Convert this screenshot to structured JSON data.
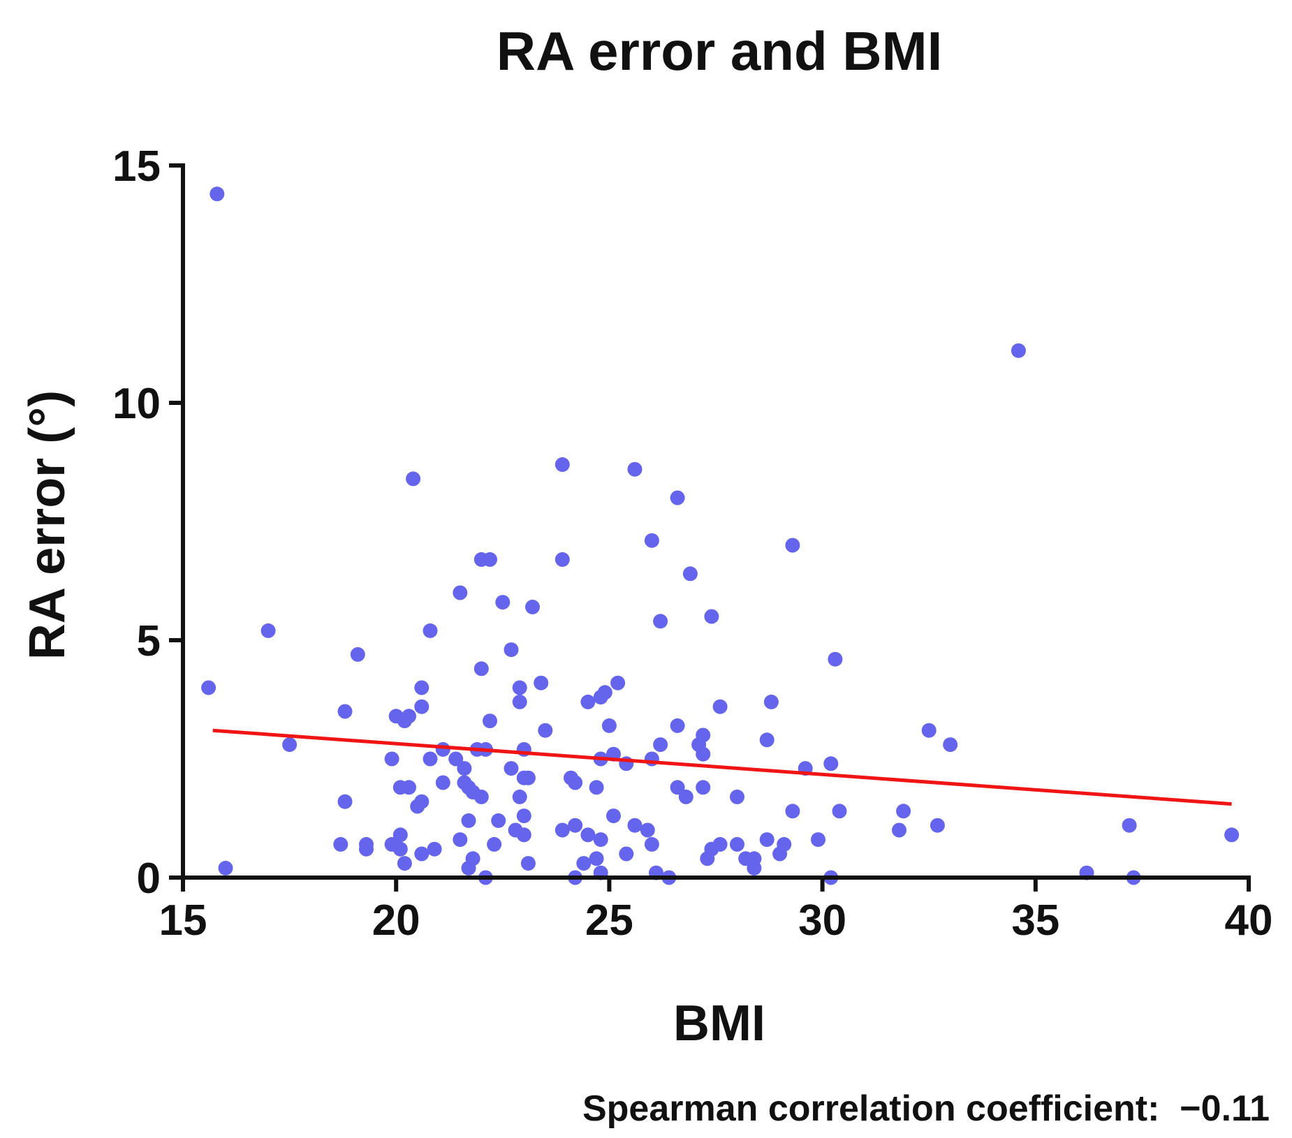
{
  "chart_data": {
    "type": "scatter",
    "title": "RA error and BMI",
    "xlabel": "BMI",
    "ylabel": "RA error (°)",
    "xlim": [
      15,
      40
    ],
    "ylim": [
      0,
      15
    ],
    "xticks": [
      15,
      20,
      25,
      30,
      35,
      40
    ],
    "yticks": [
      0,
      5,
      10,
      15
    ],
    "grid": false,
    "legend": "none",
    "annotation": "Spearman correlation coefficient:  −0.11",
    "point_color": "#6464EC",
    "trend_color": "#F01414",
    "axis_color": "#111111",
    "trend_line": {
      "x": [
        15.7,
        39.6
      ],
      "y": [
        3.1,
        1.55
      ]
    },
    "points": [
      [
        15.8,
        14.4
      ],
      [
        15.6,
        4.0
      ],
      [
        16.0,
        0.2
      ],
      [
        17.0,
        5.2
      ],
      [
        17.5,
        2.8
      ],
      [
        18.8,
        3.5
      ],
      [
        18.8,
        1.6
      ],
      [
        18.7,
        0.7
      ],
      [
        19.1,
        4.7
      ],
      [
        19.3,
        0.7
      ],
      [
        19.3,
        0.6
      ],
      [
        19.9,
        0.7
      ],
      [
        19.9,
        2.5
      ],
      [
        20.0,
        3.4
      ],
      [
        20.1,
        0.6
      ],
      [
        20.2,
        0.3
      ],
      [
        20.1,
        0.9
      ],
      [
        20.1,
        1.9
      ],
      [
        20.2,
        3.3
      ],
      [
        20.3,
        3.4
      ],
      [
        20.3,
        1.9
      ],
      [
        20.5,
        1.5
      ],
      [
        20.4,
        8.4
      ],
      [
        20.6,
        3.6
      ],
      [
        20.6,
        1.6
      ],
      [
        20.6,
        0.5
      ],
      [
        20.6,
        4.0
      ],
      [
        20.8,
        5.2
      ],
      [
        20.8,
        2.5
      ],
      [
        20.9,
        0.6
      ],
      [
        21.1,
        2.7
      ],
      [
        21.1,
        2.0
      ],
      [
        21.4,
        2.5
      ],
      [
        21.5,
        0.8
      ],
      [
        21.5,
        6.0
      ],
      [
        21.6,
        2.0
      ],
      [
        21.6,
        2.3
      ],
      [
        21.7,
        1.9
      ],
      [
        21.7,
        1.2
      ],
      [
        21.7,
        0.2
      ],
      [
        21.8,
        0.4
      ],
      [
        21.8,
        1.8
      ],
      [
        21.9,
        2.7
      ],
      [
        22.0,
        1.7
      ],
      [
        22.0,
        4.4
      ],
      [
        22.0,
        6.7
      ],
      [
        22.1,
        0.0
      ],
      [
        22.1,
        2.7
      ],
      [
        22.2,
        6.7
      ],
      [
        22.2,
        3.3
      ],
      [
        22.3,
        0.7
      ],
      [
        22.4,
        1.2
      ],
      [
        22.5,
        5.8
      ],
      [
        22.7,
        4.8
      ],
      [
        22.7,
        2.3
      ],
      [
        22.8,
        1.0
      ],
      [
        22.9,
        4.0
      ],
      [
        22.9,
        3.7
      ],
      [
        22.9,
        1.7
      ],
      [
        23.0,
        2.7
      ],
      [
        23.0,
        2.1
      ],
      [
        23.0,
        1.3
      ],
      [
        23.0,
        0.9
      ],
      [
        23.1,
        2.1
      ],
      [
        23.1,
        0.3
      ],
      [
        23.2,
        5.7
      ],
      [
        23.4,
        4.1
      ],
      [
        23.5,
        3.1
      ],
      [
        23.9,
        8.7
      ],
      [
        23.9,
        6.7
      ],
      [
        23.9,
        1.0
      ],
      [
        24.1,
        2.1
      ],
      [
        24.2,
        1.1
      ],
      [
        24.2,
        2.0
      ],
      [
        24.2,
        0.0
      ],
      [
        24.4,
        0.3
      ],
      [
        24.5,
        3.7
      ],
      [
        24.5,
        0.9
      ],
      [
        24.7,
        1.9
      ],
      [
        24.7,
        0.4
      ],
      [
        24.8,
        0.8
      ],
      [
        24.8,
        0.1
      ],
      [
        24.8,
        2.5
      ],
      [
        24.8,
        3.8
      ],
      [
        24.9,
        3.9
      ],
      [
        25.0,
        3.2
      ],
      [
        25.1,
        2.6
      ],
      [
        25.1,
        1.3
      ],
      [
        25.2,
        4.1
      ],
      [
        25.4,
        2.4
      ],
      [
        25.4,
        0.5
      ],
      [
        25.6,
        1.1
      ],
      [
        25.6,
        8.6
      ],
      [
        25.9,
        1.0
      ],
      [
        26.0,
        2.5
      ],
      [
        26.0,
        7.1
      ],
      [
        26.0,
        0.7
      ],
      [
        26.1,
        0.1
      ],
      [
        26.2,
        2.8
      ],
      [
        26.2,
        5.4
      ],
      [
        26.4,
        0.0
      ],
      [
        26.6,
        1.9
      ],
      [
        26.6,
        8.0
      ],
      [
        26.6,
        3.2
      ],
      [
        26.8,
        1.7
      ],
      [
        26.9,
        6.4
      ],
      [
        27.1,
        2.8
      ],
      [
        27.2,
        1.9
      ],
      [
        27.2,
        3.0
      ],
      [
        27.2,
        2.6
      ],
      [
        27.3,
        0.4
      ],
      [
        27.4,
        0.6
      ],
      [
        27.4,
        5.5
      ],
      [
        27.6,
        0.7
      ],
      [
        27.6,
        3.6
      ],
      [
        28.0,
        1.7
      ],
      [
        28.0,
        0.7
      ],
      [
        28.2,
        0.4
      ],
      [
        28.4,
        0.2
      ],
      [
        28.4,
        0.4
      ],
      [
        28.7,
        2.9
      ],
      [
        28.7,
        0.8
      ],
      [
        28.8,
        3.7
      ],
      [
        29.0,
        0.5
      ],
      [
        29.1,
        0.7
      ],
      [
        29.3,
        1.4
      ],
      [
        29.3,
        7.0
      ],
      [
        29.6,
        2.3
      ],
      [
        29.9,
        0.8
      ],
      [
        30.2,
        2.4
      ],
      [
        30.2,
        0.0
      ],
      [
        30.3,
        4.6
      ],
      [
        30.4,
        1.4
      ],
      [
        31.8,
        1.0
      ],
      [
        31.9,
        1.4
      ],
      [
        32.5,
        3.1
      ],
      [
        32.7,
        1.1
      ],
      [
        33.0,
        2.8
      ],
      [
        34.6,
        11.1
      ],
      [
        36.2,
        0.1
      ],
      [
        37.2,
        1.1
      ],
      [
        37.3,
        0.0
      ],
      [
        39.6,
        0.9
      ]
    ]
  }
}
